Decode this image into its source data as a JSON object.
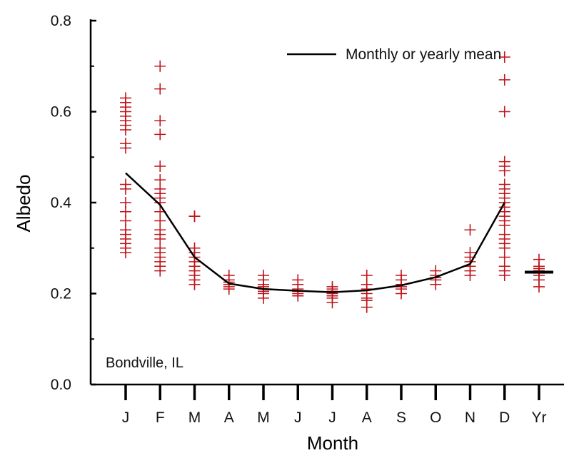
{
  "chart_data": {
    "type": "scatter",
    "title": "",
    "xlabel": "Month",
    "ylabel": "Albedo",
    "categories": [
      "J",
      "F",
      "M",
      "A",
      "M",
      "J",
      "J",
      "A",
      "S",
      "O",
      "N",
      "D",
      "Yr"
    ],
    "ylim": [
      0.0,
      0.8
    ],
    "yticks": [
      0.0,
      0.2,
      0.4,
      0.6,
      0.8
    ],
    "ytick_labels": [
      "0.0",
      "0.2",
      "0.4",
      "0.6",
      "0.8"
    ],
    "grid": false,
    "legend_position": "top-right",
    "annotation": "Bondville, IL",
    "colors": {
      "points": "#c0141a",
      "mean_line": "#000000",
      "axes": "#000000"
    },
    "series": [
      {
        "name": "Monthly or yearly mean",
        "kind": "line",
        "values": [
          0.465,
          0.395,
          0.28,
          0.222,
          0.21,
          0.206,
          0.203,
          0.207,
          0.218,
          0.236,
          0.265,
          0.4,
          null
        ]
      },
      {
        "name": "",
        "kind": "line-segment",
        "category": "Yr",
        "value": 0.247
      },
      {
        "name": "",
        "kind": "scatter",
        "points": [
          [
            0,
            [
              0.29,
              0.3,
              0.31,
              0.32,
              0.33,
              0.34,
              0.36,
              0.38,
              0.4,
              0.43,
              0.44,
              0.52,
              0.53,
              0.56,
              0.57,
              0.58,
              0.59,
              0.6,
              0.61,
              0.62,
              0.63
            ]
          ],
          [
            1,
            [
              0.25,
              0.26,
              0.27,
              0.28,
              0.29,
              0.3,
              0.32,
              0.33,
              0.34,
              0.36,
              0.38,
              0.4,
              0.41,
              0.42,
              0.43,
              0.45,
              0.48,
              0.55,
              0.58,
              0.65,
              0.7
            ]
          ],
          [
            2,
            [
              0.22,
              0.23,
              0.24,
              0.25,
              0.26,
              0.27,
              0.28,
              0.29,
              0.3,
              0.37,
              0.37
            ]
          ],
          [
            3,
            [
              0.21,
              0.215,
              0.22,
              0.225,
              0.23,
              0.24
            ]
          ],
          [
            4,
            [
              0.19,
              0.2,
              0.205,
              0.21,
              0.215,
              0.22,
              0.23,
              0.24
            ]
          ],
          [
            5,
            [
              0.195,
              0.2,
              0.205,
              0.21,
              0.22,
              0.23
            ]
          ],
          [
            6,
            [
              0.18,
              0.19,
              0.195,
              0.2,
              0.205,
              0.21,
              0.215
            ]
          ],
          [
            7,
            [
              0.17,
              0.185,
              0.19,
              0.2,
              0.21,
              0.22,
              0.24
            ]
          ],
          [
            8,
            [
              0.2,
              0.21,
              0.215,
              0.22,
              0.23,
              0.24
            ]
          ],
          [
            9,
            [
              0.22,
              0.23,
              0.235,
              0.24,
              0.25
            ]
          ],
          [
            10,
            [
              0.24,
              0.25,
              0.26,
              0.27,
              0.28,
              0.29,
              0.34
            ]
          ],
          [
            11,
            [
              0.24,
              0.25,
              0.26,
              0.28,
              0.3,
              0.31,
              0.32,
              0.33,
              0.35,
              0.36,
              0.37,
              0.38,
              0.39,
              0.4,
              0.41,
              0.42,
              0.43,
              0.44,
              0.47,
              0.48,
              0.49,
              0.6,
              0.67,
              0.72
            ]
          ],
          [
            12,
            [
              0.215,
              0.23,
              0.24,
              0.245,
              0.25,
              0.255,
              0.26,
              0.275
            ]
          ]
        ]
      }
    ]
  }
}
